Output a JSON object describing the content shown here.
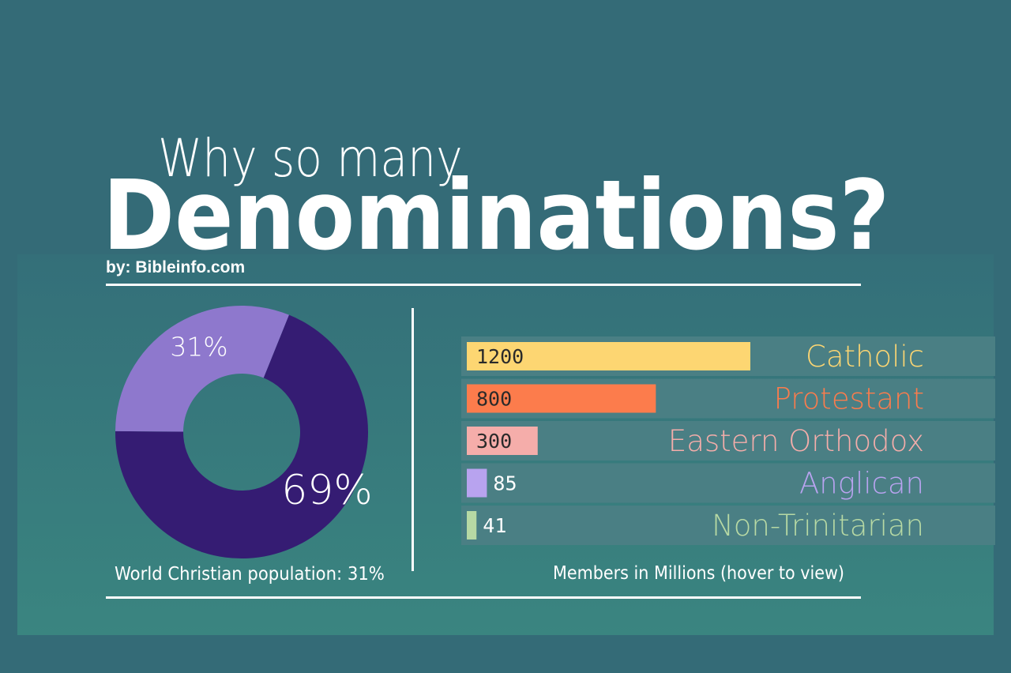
{
  "header": {
    "title_line1": "Why so many",
    "title_line2": "Denominations?",
    "byline": "by: Bibleinfo.com"
  },
  "colors": {
    "background": "#346b77",
    "donut_major": "#351c73",
    "donut_minor": "#8e78cd",
    "row_background": "#4a7f84"
  },
  "chart_data": [
    {
      "type": "pie",
      "caption": "World Christian population: 31%",
      "slices": [
        {
          "value": 69,
          "label": "69%",
          "color": "#351c73"
        },
        {
          "value": 31,
          "label": "31%",
          "color": "#8e78cd"
        }
      ]
    },
    {
      "type": "bar",
      "caption": "Members in Millions (hover to view)",
      "categories": [
        "Catholic",
        "Protestant",
        "Eastern Orthodox",
        "Anglican",
        "Non-Trinitarian"
      ],
      "values": [
        1200,
        800,
        300,
        85,
        41
      ],
      "value_labels": [
        "1200",
        "800",
        "300",
        "85",
        "41"
      ],
      "colors": [
        "#fdd672",
        "#fc7c4c",
        "#f5adaa",
        "#b8a3ef",
        "#b7d9a4"
      ],
      "xlim": [
        0,
        1200
      ]
    }
  ]
}
